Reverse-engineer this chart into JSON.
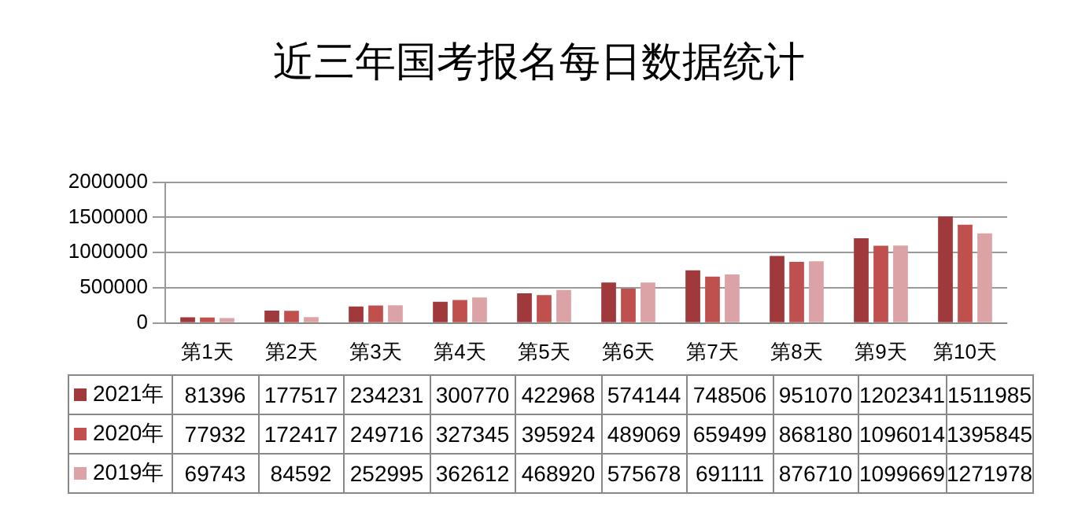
{
  "chart_data": {
    "type": "bar",
    "title": "近三年国考报名每日数据统计",
    "categories": [
      "第1天",
      "第2天",
      "第3天",
      "第4天",
      "第5天",
      "第6天",
      "第7天",
      "第8天",
      "第9天",
      "第10天"
    ],
    "series": [
      {
        "name": "2021年",
        "color": "#a0393b",
        "values": [
          81396,
          177517,
          234231,
          300770,
          422968,
          574144,
          748506,
          951070,
          1202341,
          1511985
        ]
      },
      {
        "name": "2020年",
        "color": "#c0504d",
        "values": [
          77932,
          172417,
          249716,
          327345,
          395924,
          489069,
          659499,
          868180,
          1096014,
          1395845
        ]
      },
      {
        "name": "2019年",
        "color": "#dba3a5",
        "values": [
          69743,
          84592,
          252995,
          362612,
          468920,
          575678,
          691111,
          876710,
          1099669,
          1271978
        ]
      }
    ],
    "ylim": [
      0,
      2000000
    ],
    "yticks": [
      0,
      500000,
      1000000,
      1500000,
      2000000
    ],
    "grid": "y",
    "legend": "bottom",
    "data_labels": true
  }
}
